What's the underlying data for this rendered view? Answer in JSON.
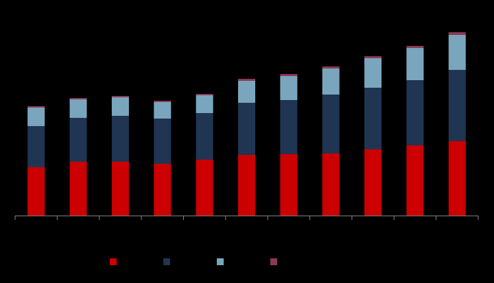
{
  "chart_data": {
    "type": "stacked_bar",
    "categories": [
      null,
      null,
      null,
      null,
      null,
      null,
      null,
      null,
      null,
      null,
      null
    ],
    "series": [
      {
        "color": "#cc0000",
        "values": [
          71,
          79,
          79,
          76,
          82,
          89,
          90,
          91,
          97,
          103,
          109
        ]
      },
      {
        "color": "#1f3552",
        "values": [
          60,
          64,
          67,
          66,
          68,
          76,
          79,
          86,
          90,
          95,
          104
        ]
      },
      {
        "color": "#7aa6bd",
        "values": [
          27,
          27,
          27,
          24,
          26,
          32,
          35,
          38,
          43,
          47,
          51
        ]
      },
      {
        "color": "#8b3a56",
        "values": [
          2,
          2,
          2,
          2,
          2,
          3,
          3,
          3,
          3,
          3,
          4
        ]
      }
    ],
    "ylim": [
      0,
      300
    ],
    "grid": false
  }
}
